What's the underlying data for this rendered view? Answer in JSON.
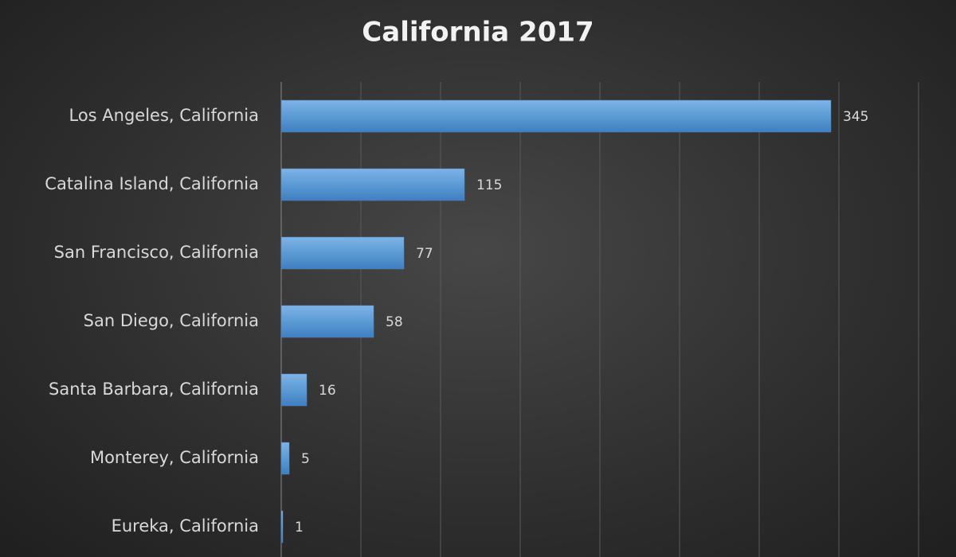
{
  "chart_data": {
    "type": "bar",
    "orientation": "horizontal",
    "title": "California 2017",
    "categories": [
      "Los Angeles, California",
      "Catalina Island, California",
      "San Francisco, California",
      "San Diego, California",
      "Santa Barbara, California",
      "Monterey, California",
      "Eureka, California"
    ],
    "values": [
      345,
      115,
      77,
      58,
      16,
      5,
      1
    ],
    "color": "#5b9bd5",
    "xlim": [
      0,
      400
    ],
    "xticks": [
      0,
      50,
      100,
      150,
      200,
      250,
      300,
      350,
      400
    ],
    "grid": true
  }
}
